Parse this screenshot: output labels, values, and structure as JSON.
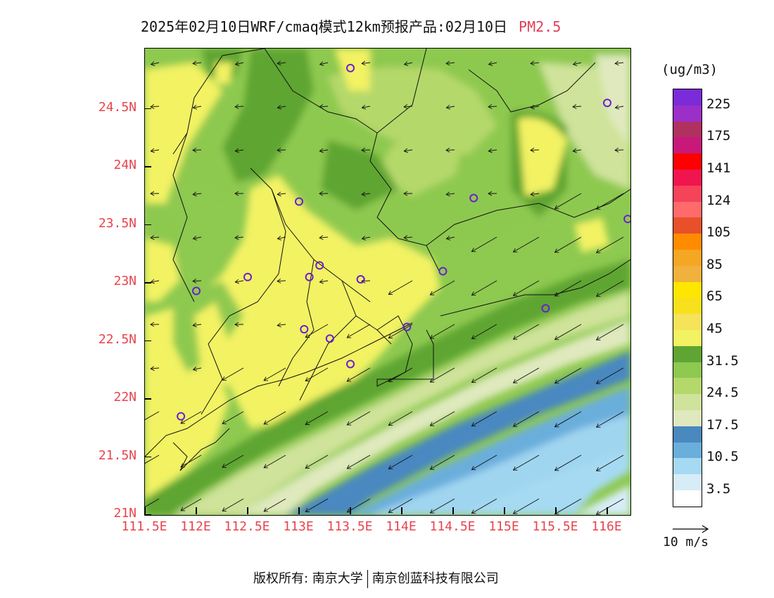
{
  "title": {
    "main": "2025年02月10日WRF/cmaq模式12km预报产品:02月10日",
    "pollutant": "PM2.5"
  },
  "axes": {
    "y_ticks": [
      "24.5N",
      "24N",
      "23.5N",
      "23N",
      "22.5N",
      "22N",
      "21.5N",
      "21N"
    ],
    "x_ticks": [
      "111.5E",
      "112E",
      "112.5E",
      "113E",
      "113.5E",
      "114E",
      "114.5E",
      "115E",
      "115.5E",
      "116E"
    ]
  },
  "colorbar": {
    "unit": "(ug/m3)",
    "labels": [
      "225",
      "175",
      "141",
      "124",
      "105",
      "85",
      "65",
      "45",
      "31.5",
      "24.5",
      "17.5",
      "10.5",
      "3.5"
    ],
    "colors": [
      "#7b2bd8",
      "#9b2fc8",
      "#b0305f",
      "#c8187a",
      "#ff0000",
      "#f0154f",
      "#f5435a",
      "#ff6b6b",
      "#e8502a",
      "#ff8c00",
      "#f5a623",
      "#f0b23c",
      "#ffe600",
      "#f7e11c",
      "#f5e35a",
      "#f2f263",
      "#5fa533",
      "#8ec950",
      "#b5d86a",
      "#cfe39a",
      "#dfe9bd",
      "#4a88c0",
      "#6aaedc",
      "#a6d9f2",
      "#d6edf7",
      "#ffffff"
    ]
  },
  "wind_key": {
    "label": "10 m/s"
  },
  "cities": [
    {
      "lon": 113.5,
      "lat": 24.85
    },
    {
      "lon": 116.0,
      "lat": 24.55
    },
    {
      "lon": 113.0,
      "lat": 23.7
    },
    {
      "lon": 114.7,
      "lat": 23.73
    },
    {
      "lon": 116.2,
      "lat": 23.55
    },
    {
      "lon": 112.5,
      "lat": 23.05
    },
    {
      "lon": 113.1,
      "lat": 23.05
    },
    {
      "lon": 113.2,
      "lat": 23.15
    },
    {
      "lon": 113.6,
      "lat": 23.03
    },
    {
      "lon": 114.4,
      "lat": 23.1
    },
    {
      "lon": 112.0,
      "lat": 22.93
    },
    {
      "lon": 115.4,
      "lat": 22.78
    },
    {
      "lon": 113.05,
      "lat": 22.6
    },
    {
      "lon": 113.3,
      "lat": 22.52
    },
    {
      "lon": 114.05,
      "lat": 22.62
    },
    {
      "lon": 113.5,
      "lat": 22.3
    },
    {
      "lon": 111.85,
      "lat": 21.85
    }
  ],
  "footer": {
    "copyright": "版权所有: 南京大学",
    "company": "南京创蓝科技有限公司"
  }
}
